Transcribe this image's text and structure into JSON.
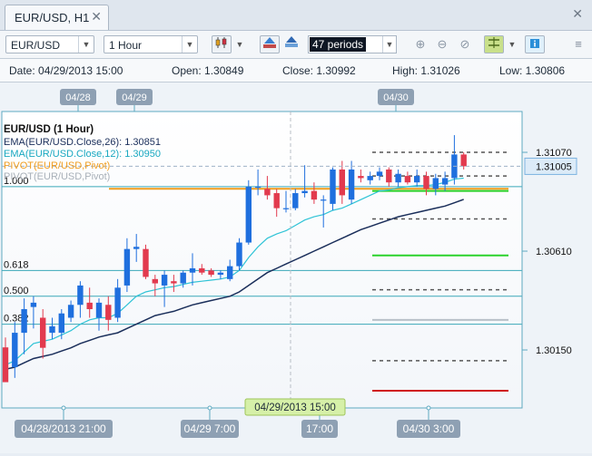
{
  "tab": {
    "label": "EUR/USD, H1"
  },
  "toolbar": {
    "symbol": "EUR/USD",
    "timeframe": "1 Hour",
    "periods": "47 periods",
    "icons": [
      "candlestick-icon",
      "chart-type-up-icon",
      "chart-type-alt-icon",
      "zoom-in-icon",
      "zoom-out-icon",
      "zoom-reset-icon",
      "indicators-icon",
      "info-icon",
      "menu-icon"
    ]
  },
  "info": {
    "date": "Date: 04/29/2013 15:00",
    "open": "Open: 1.30849",
    "close": "Close: 1.30992",
    "high": "High: 1.31026",
    "low": "Low: 1.30806"
  },
  "legend": {
    "title": "EUR/USD (1 Hour)",
    "ema26": "EMA(EUR/USD.Close,26): 1.30851",
    "ema12": "EMA(EUR/USD.Close,12): 1.30950",
    "pivot1": "PIVOT(EUR/USD,Pivot)",
    "pivot2": "PIVOT(EUR/USD,Pivot)"
  },
  "fib_levels": [
    "1.000",
    "0.618",
    "0.500",
    "0.382"
  ],
  "price_labels": {
    "current": "1.31005",
    "ticks": [
      "1.31070",
      "1.30610",
      "1.30150"
    ]
  },
  "top_date_labels": [
    "04/28",
    "04/29",
    "04/30"
  ],
  "bottom_time_labels": [
    "04/28/2013 21:00",
    "04/29 7:00",
    "17:00",
    "04/30 3:00"
  ],
  "crosshair_label": "04/29/2013 15:00",
  "colors": {
    "up": "#1f6fde",
    "down": "#e23a4e",
    "ema26": "#1a2e5a",
    "ema12": "#2ec3d6",
    "pivot": "#f09d1e",
    "fib": "#3aa8b8"
  },
  "chart_data": {
    "type": "candlestick",
    "candles": [
      [
        1.30162,
        1.3,
        1.30208,
        1.3001
      ],
      [
        1.3007,
        1.3023,
        1.3028,
        1.3002
      ],
      [
        1.3023,
        1.3034,
        1.3039,
        1.3013
      ],
      [
        1.3035,
        1.3037,
        1.304,
        1.3025
      ],
      [
        1.303,
        1.3016,
        1.3034,
        1.3011
      ],
      [
        1.3023,
        1.3026,
        1.303,
        1.302
      ],
      [
        1.3023,
        1.3032,
        1.3034,
        1.302
      ],
      [
        1.303,
        1.3036,
        1.3038,
        1.3028
      ],
      [
        1.3036,
        1.3045,
        1.3047,
        1.303
      ],
      [
        1.3037,
        1.3034,
        1.3044,
        1.303
      ],
      [
        1.303,
        1.3037,
        1.3039,
        1.3024
      ],
      [
        1.3036,
        1.3029,
        1.304,
        1.3024
      ],
      [
        1.303,
        1.3044,
        1.3048,
        1.3028
      ],
      [
        1.3045,
        1.3062,
        1.3067,
        1.3042
      ],
      [
        1.3062,
        1.3063,
        1.3069,
        1.3056
      ],
      [
        1.3062,
        1.3049,
        1.3064,
        1.3048
      ],
      [
        1.3048,
        1.3046,
        1.305,
        1.304
      ],
      [
        1.3045,
        1.305,
        1.3052,
        1.3035
      ],
      [
        1.3047,
        1.3046,
        1.305,
        1.3042
      ],
      [
        1.3046,
        1.3051,
        1.3052,
        1.3044
      ],
      [
        1.3051,
        1.3053,
        1.306,
        1.3045
      ],
      [
        1.3053,
        1.3051,
        1.3055,
        1.305
      ],
      [
        1.3052,
        1.305,
        1.3053,
        1.3049
      ],
      [
        1.305,
        1.3051,
        1.3052,
        1.3048
      ],
      [
        1.3048,
        1.3054,
        1.3057,
        1.3047
      ],
      [
        1.3054,
        1.3065,
        1.3067,
        1.3052
      ],
      [
        1.3065,
        1.3091,
        1.3094,
        1.3064
      ],
      [
        1.3091,
        1.3091,
        1.3099,
        1.3087
      ],
      [
        1.309,
        1.3087,
        1.3096,
        1.3085
      ],
      [
        1.3088,
        1.3081,
        1.309,
        1.3077
      ],
      [
        1.3081,
        1.3081,
        1.3089,
        1.3079
      ],
      [
        1.3081,
        1.3088,
        1.309,
        1.308
      ],
      [
        1.3088,
        1.3089,
        1.3101,
        1.3086
      ],
      [
        1.3089,
        1.3085,
        1.3093,
        1.3083
      ],
      [
        1.3085,
        1.3085,
        1.3087,
        1.3072
      ],
      [
        1.3083,
        1.3099,
        1.31,
        1.308
      ],
      [
        1.3099,
        1.3087,
        1.3103,
        1.3083
      ],
      [
        1.3085,
        1.3099,
        1.3103,
        1.3083
      ],
      [
        1.3096,
        1.3095,
        1.3099,
        1.3093
      ],
      [
        1.3094,
        1.3096,
        1.3098,
        1.3092
      ],
      [
        1.3096,
        1.3098,
        1.31,
        1.3094
      ],
      [
        1.3099,
        1.3093,
        1.31,
        1.3091
      ],
      [
        1.3093,
        1.3097,
        1.3099,
        1.3091
      ],
      [
        1.3096,
        1.3093,
        1.3098,
        1.3092
      ],
      [
        1.3093,
        1.3096,
        1.3099,
        1.3091
      ],
      [
        1.3096,
        1.309,
        1.3098,
        1.3087
      ],
      [
        1.309,
        1.3095,
        1.3097,
        1.3087
      ],
      [
        1.3092,
        1.3095,
        1.3098,
        1.3089
      ],
      [
        1.3095,
        1.3106,
        1.3115,
        1.3092
      ],
      [
        1.3106,
        1.31005,
        1.3107,
        1.3099
      ]
    ],
    "ema12": [
      1.3008,
      1.301,
      1.3014,
      1.3018,
      1.3019,
      1.302,
      1.3022,
      1.3024,
      1.3027,
      1.3029,
      1.303,
      1.303,
      1.3032,
      1.3036,
      1.304,
      1.3042,
      1.3043,
      1.3044,
      1.30445,
      1.30455,
      1.30465,
      1.3047,
      1.30475,
      1.3048,
      1.3049,
      1.3052,
      1.3058,
      1.3063,
      1.3067,
      1.3069,
      1.30705,
      1.3073,
      1.30755,
      1.3077,
      1.3078,
      1.308,
      1.3081,
      1.3083,
      1.3085,
      1.3087,
      1.3089,
      1.30895,
      1.30905,
      1.3091,
      1.30915,
      1.30915,
      1.3092,
      1.3093,
      1.30945,
      1.3095
    ],
    "ema26": [
      1.3006,
      1.3007,
      1.3009,
      1.3011,
      1.3012,
      1.3013,
      1.30145,
      1.3016,
      1.3018,
      1.30195,
      1.3021,
      1.3022,
      1.3023,
      1.3025,
      1.3027,
      1.3029,
      1.3031,
      1.3032,
      1.3033,
      1.30345,
      1.3036,
      1.3037,
      1.3038,
      1.3039,
      1.304,
      1.3042,
      1.3045,
      1.3048,
      1.3051,
      1.3053,
      1.3055,
      1.3057,
      1.3059,
      1.3061,
      1.3063,
      1.3065,
      1.3067,
      1.3069,
      1.3071,
      1.30725,
      1.3074,
      1.30755,
      1.3077,
      1.3078,
      1.3079,
      1.308,
      1.3081,
      1.3082,
      1.30835,
      1.30851
    ],
    "fib_prices": [
      1.3091,
      1.3052,
      1.304,
      1.3027
    ],
    "pivot_price": 1.309,
    "pivot_levels": [
      {
        "price": 1.3107,
        "color": "#555555",
        "dash": true
      },
      {
        "price": 1.3096,
        "color": "#555555",
        "dash": true
      },
      {
        "price": 1.3089,
        "color": "#2bd22b",
        "dash": false
      },
      {
        "price": 1.3076,
        "color": "#555555",
        "dash": true
      },
      {
        "price": 1.3059,
        "color": "#2bd22b",
        "dash": false
      },
      {
        "price": 1.3043,
        "color": "#555555",
        "dash": true
      },
      {
        "price": 1.3029,
        "color": "#b8c0c8",
        "dash": false
      },
      {
        "price": 1.301,
        "color": "#555555",
        "dash": true
      },
      {
        "price": 1.2996,
        "color": "#d01818",
        "dash": false
      }
    ],
    "ylim": [
      1.2988,
      1.3126
    ],
    "price_ticks": [
      1.3107,
      1.3061,
      1.3015
    ]
  }
}
